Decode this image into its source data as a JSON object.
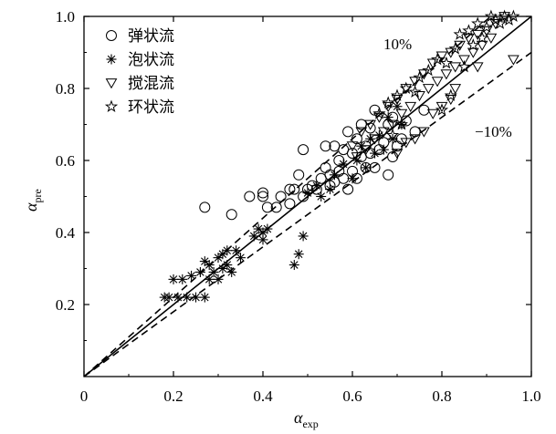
{
  "chart_data": {
    "type": "scatter",
    "xlabel": "α",
    "xlabel_sub": "exp",
    "ylabel": "α",
    "ylabel_sub": "pre",
    "xlim": [
      0,
      1.0
    ],
    "ylim": [
      0,
      1.0
    ],
    "x_ticks": [
      0,
      0.2,
      0.4,
      0.6,
      0.8,
      1.0
    ],
    "x_tick_labels": [
      "0",
      "0.2",
      "0.4",
      "0.6",
      "0.8",
      "1.0"
    ],
    "y_ticks": [
      0.2,
      0.4,
      0.6,
      0.8,
      1.0
    ],
    "y_tick_labels": [
      "0.2",
      "0.4",
      "0.6",
      "0.8",
      "1.0"
    ],
    "grid": false,
    "legend_position": "top-left",
    "reference_lines": [
      {
        "label": "",
        "style": "solid",
        "slope": 1.0
      },
      {
        "label": "10%",
        "style": "dashed",
        "slope": 1.1
      },
      {
        "label": "−10%",
        "style": "dashed",
        "slope": 0.9
      }
    ],
    "series": [
      {
        "name": "弹状流",
        "marker": "circle",
        "points": [
          [
            0.27,
            0.47
          ],
          [
            0.33,
            0.45
          ],
          [
            0.37,
            0.5
          ],
          [
            0.4,
            0.5
          ],
          [
            0.4,
            0.51
          ],
          [
            0.41,
            0.47
          ],
          [
            0.43,
            0.47
          ],
          [
            0.44,
            0.5
          ],
          [
            0.46,
            0.48
          ],
          [
            0.46,
            0.52
          ],
          [
            0.47,
            0.52
          ],
          [
            0.48,
            0.56
          ],
          [
            0.49,
            0.5
          ],
          [
            0.49,
            0.63
          ],
          [
            0.5,
            0.52
          ],
          [
            0.51,
            0.53
          ],
          [
            0.52,
            0.52
          ],
          [
            0.53,
            0.55
          ],
          [
            0.54,
            0.58
          ],
          [
            0.54,
            0.64
          ],
          [
            0.55,
            0.53
          ],
          [
            0.55,
            0.56
          ],
          [
            0.56,
            0.54
          ],
          [
            0.56,
            0.64
          ],
          [
            0.57,
            0.57
          ],
          [
            0.57,
            0.6
          ],
          [
            0.58,
            0.55
          ],
          [
            0.58,
            0.63
          ],
          [
            0.59,
            0.52
          ],
          [
            0.59,
            0.68
          ],
          [
            0.6,
            0.57
          ],
          [
            0.6,
            0.62
          ],
          [
            0.61,
            0.55
          ],
          [
            0.61,
            0.66
          ],
          [
            0.62,
            0.61
          ],
          [
            0.62,
            0.7
          ],
          [
            0.63,
            0.58
          ],
          [
            0.63,
            0.64
          ],
          [
            0.64,
            0.62
          ],
          [
            0.64,
            0.69
          ],
          [
            0.65,
            0.58
          ],
          [
            0.65,
            0.74
          ],
          [
            0.66,
            0.63
          ],
          [
            0.67,
            0.65
          ],
          [
            0.68,
            0.56
          ],
          [
            0.68,
            0.7
          ],
          [
            0.69,
            0.61
          ],
          [
            0.69,
            0.72
          ],
          [
            0.7,
            0.64
          ],
          [
            0.71,
            0.66
          ],
          [
            0.72,
            0.71
          ],
          [
            0.74,
            0.68
          ],
          [
            0.76,
            0.74
          ]
        ]
      },
      {
        "name": "泡状流",
        "marker": "asterisk",
        "points": [
          [
            0.18,
            0.22
          ],
          [
            0.19,
            0.22
          ],
          [
            0.2,
            0.27
          ],
          [
            0.21,
            0.22
          ],
          [
            0.22,
            0.27
          ],
          [
            0.23,
            0.22
          ],
          [
            0.24,
            0.28
          ],
          [
            0.25,
            0.22
          ],
          [
            0.26,
            0.29
          ],
          [
            0.27,
            0.22
          ],
          [
            0.27,
            0.32
          ],
          [
            0.28,
            0.27
          ],
          [
            0.28,
            0.31
          ],
          [
            0.29,
            0.29
          ],
          [
            0.3,
            0.33
          ],
          [
            0.3,
            0.27
          ],
          [
            0.31,
            0.3
          ],
          [
            0.31,
            0.34
          ],
          [
            0.32,
            0.31
          ],
          [
            0.32,
            0.35
          ],
          [
            0.33,
            0.29
          ],
          [
            0.34,
            0.35
          ],
          [
            0.35,
            0.33
          ],
          [
            0.38,
            0.39
          ],
          [
            0.39,
            0.41
          ],
          [
            0.4,
            0.4
          ],
          [
            0.4,
            0.38
          ],
          [
            0.41,
            0.41
          ],
          [
            0.47,
            0.31
          ],
          [
            0.48,
            0.34
          ],
          [
            0.49,
            0.39
          ],
          [
            0.5,
            0.51
          ],
          [
            0.52,
            0.53
          ],
          [
            0.53,
            0.5
          ],
          [
            0.55,
            0.52
          ],
          [
            0.56,
            0.56
          ],
          [
            0.58,
            0.59
          ],
          [
            0.6,
            0.55
          ],
          [
            0.61,
            0.6
          ],
          [
            0.62,
            0.64
          ],
          [
            0.63,
            0.58
          ],
          [
            0.64,
            0.66
          ],
          [
            0.65,
            0.62
          ],
          [
            0.66,
            0.67
          ],
          [
            0.67,
            0.63
          ],
          [
            0.68,
            0.72
          ],
          [
            0.69,
            0.66
          ],
          [
            0.7,
            0.75
          ],
          [
            0.71,
            0.7
          ]
        ]
      },
      {
        "name": "搅混流",
        "marker": "triangle-down",
        "points": [
          [
            0.6,
            0.64
          ],
          [
            0.61,
            0.61
          ],
          [
            0.62,
            0.68
          ],
          [
            0.63,
            0.63
          ],
          [
            0.64,
            0.7
          ],
          [
            0.65,
            0.66
          ],
          [
            0.66,
            0.72
          ],
          [
            0.67,
            0.68
          ],
          [
            0.68,
            0.75
          ],
          [
            0.69,
            0.7
          ],
          [
            0.7,
            0.77
          ],
          [
            0.71,
            0.73
          ],
          [
            0.72,
            0.8
          ],
          [
            0.73,
            0.75
          ],
          [
            0.74,
            0.82
          ],
          [
            0.75,
            0.78
          ],
          [
            0.76,
            0.84
          ],
          [
            0.77,
            0.8
          ],
          [
            0.78,
            0.87
          ],
          [
            0.79,
            0.82
          ],
          [
            0.8,
            0.89
          ],
          [
            0.81,
            0.84
          ],
          [
            0.82,
            0.9
          ],
          [
            0.83,
            0.86
          ],
          [
            0.84,
            0.92
          ],
          [
            0.85,
            0.88
          ],
          [
            0.86,
            0.94
          ],
          [
            0.87,
            0.9
          ],
          [
            0.88,
            0.95
          ],
          [
            0.89,
            0.92
          ],
          [
            0.9,
            0.96
          ],
          [
            0.91,
            0.94
          ],
          [
            0.92,
            0.98
          ],
          [
            0.94,
            1.0
          ],
          [
            0.96,
            0.88
          ],
          [
            0.83,
            0.8
          ],
          [
            0.82,
            0.77
          ],
          [
            0.8,
            0.75
          ],
          [
            0.78,
            0.73
          ],
          [
            0.76,
            0.68
          ],
          [
            0.74,
            0.66
          ],
          [
            0.72,
            0.65
          ],
          [
            0.7,
            0.62
          ],
          [
            0.88,
            0.86
          ]
        ]
      },
      {
        "name": "环状流",
        "marker": "star",
        "points": [
          [
            0.66,
            0.73
          ],
          [
            0.68,
            0.76
          ],
          [
            0.7,
            0.78
          ],
          [
            0.72,
            0.8
          ],
          [
            0.74,
            0.79
          ],
          [
            0.75,
            0.83
          ],
          [
            0.77,
            0.85
          ],
          [
            0.79,
            0.88
          ],
          [
            0.81,
            0.87
          ],
          [
            0.83,
            0.91
          ],
          [
            0.84,
            0.95
          ],
          [
            0.86,
            0.96
          ],
          [
            0.87,
            0.92
          ],
          [
            0.88,
            0.98
          ],
          [
            0.89,
            0.94
          ],
          [
            0.9,
            0.97
          ],
          [
            0.91,
            1.0
          ],
          [
            0.92,
            0.99
          ],
          [
            0.93,
            0.98
          ],
          [
            0.94,
            1.0
          ],
          [
            0.95,
            0.99
          ],
          [
            0.96,
            1.0
          ],
          [
            0.8,
            0.74
          ],
          [
            0.82,
            0.78
          ],
          [
            0.85,
            0.86
          ],
          [
            0.71,
            0.7
          ],
          [
            0.69,
            0.67
          ]
        ]
      }
    ]
  }
}
